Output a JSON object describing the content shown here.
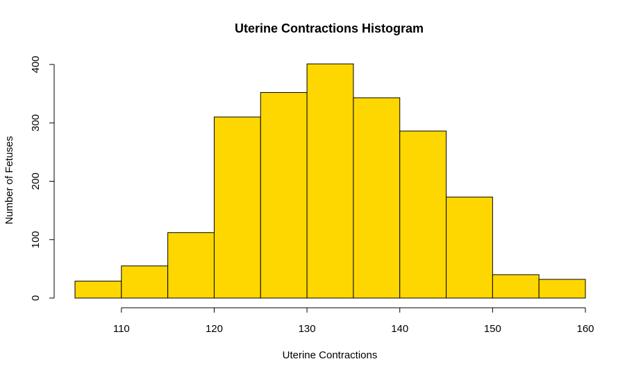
{
  "chart_data": {
    "type": "bar",
    "title": "Uterine Contractions Histogram",
    "xlabel": "Uterine Contractions",
    "ylabel": "Number of Fetuses",
    "bar_color": "#FFD700",
    "bins": [
      {
        "start": 105,
        "end": 110,
        "count": 29
      },
      {
        "start": 110,
        "end": 115,
        "count": 55
      },
      {
        "start": 115,
        "end": 120,
        "count": 112
      },
      {
        "start": 120,
        "end": 125,
        "count": 310
      },
      {
        "start": 125,
        "end": 130,
        "count": 352
      },
      {
        "start": 130,
        "end": 135,
        "count": 401
      },
      {
        "start": 135,
        "end": 140,
        "count": 343
      },
      {
        "start": 140,
        "end": 145,
        "count": 286
      },
      {
        "start": 145,
        "end": 150,
        "count": 173
      },
      {
        "start": 150,
        "end": 155,
        "count": 40
      },
      {
        "start": 155,
        "end": 160,
        "count": 32
      }
    ],
    "xlim": [
      105,
      160
    ],
    "ylim": [
      0,
      401
    ],
    "x_ticks": [
      110,
      120,
      130,
      140,
      150,
      160
    ],
    "y_ticks": [
      0,
      100,
      200,
      300,
      400
    ],
    "grid": false,
    "legend": "none"
  }
}
